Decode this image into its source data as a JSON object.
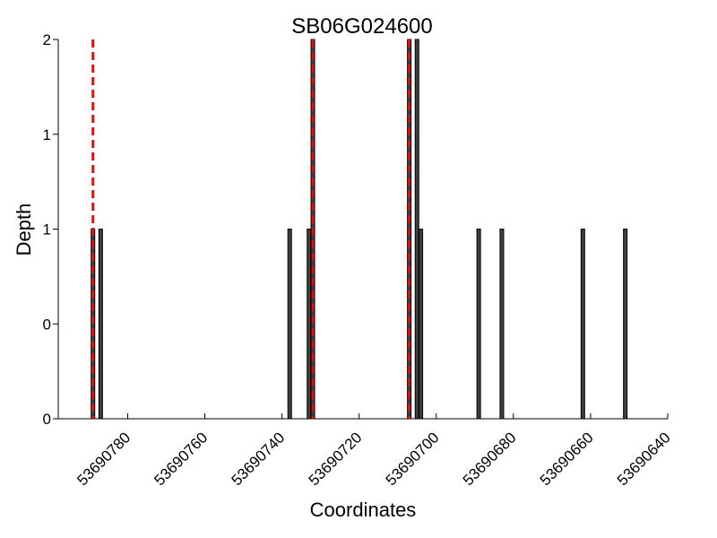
{
  "chart_data": {
    "type": "bar",
    "title": "SB06G024600",
    "xlabel": "Coordinates",
    "ylabel": "Depth",
    "xlim": [
      53690798,
      53690640
    ],
    "x_inverted": true,
    "ylim": [
      0,
      2
    ],
    "x_ticks": [
      53690780,
      53690760,
      53690740,
      53690720,
      53690700,
      53690680,
      53690660,
      53690640
    ],
    "y_tick_labels": [
      "0",
      "0",
      "1",
      "1",
      "2"
    ],
    "y_tick_values": [
      0,
      0.5,
      1,
      1.5,
      2
    ],
    "bars": [
      {
        "x": 53690789,
        "depth": 1
      },
      {
        "x": 53690787,
        "depth": 1
      },
      {
        "x": 53690738,
        "depth": 1
      },
      {
        "x": 53690733,
        "depth": 1
      },
      {
        "x": 53690732,
        "depth": 2
      },
      {
        "x": 53690707,
        "depth": 2
      },
      {
        "x": 53690705,
        "depth": 2
      },
      {
        "x": 53690704,
        "depth": 1
      },
      {
        "x": 53690689,
        "depth": 1
      },
      {
        "x": 53690683,
        "depth": 1
      },
      {
        "x": 53690662,
        "depth": 1
      },
      {
        "x": 53690651,
        "depth": 1
      }
    ],
    "markers": [
      53690789,
      53690732,
      53690707
    ],
    "grid": false,
    "marker_color": "#e01010",
    "bar_color": "#404040"
  }
}
